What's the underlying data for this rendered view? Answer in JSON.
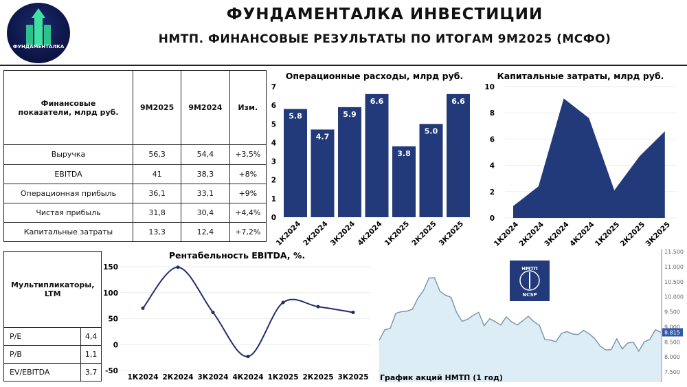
{
  "header": {
    "title": "ФУНДАМЕНТАЛКА ИНВЕСТИЦИИ",
    "subtitle": "НМТП. ФИНАНСОВЫЕ РЕЗУЛЬТАТЫ ПО ИТОГАМ 9М2025 (МСФО)",
    "logo_text": "ФУНДАМЕНТАЛКА"
  },
  "fin_table": {
    "headers": [
      "Финансовые показатели, млрд руб.",
      "9M2025",
      "9M2024",
      "Изм."
    ],
    "rows": [
      [
        "Выручка",
        "56,3",
        "54,4",
        "+3,5%"
      ],
      [
        "EBITDA",
        "41",
        "38,3",
        "+8%"
      ],
      [
        "Операционная прибыль",
        "36,1",
        "33,1",
        "+9%"
      ],
      [
        "Чистая прибыль",
        "31,8",
        "30,4",
        "+4,4%"
      ],
      [
        "Капитальные затраты",
        "13,3",
        "12,4",
        "+7,2%"
      ]
    ]
  },
  "mult_table": {
    "header": "Мультипликаторы, LTM",
    "rows": [
      [
        "P/E",
        "4,4"
      ],
      [
        "P/B",
        "1,1"
      ],
      [
        "EV/EBITDA",
        "3,7"
      ]
    ]
  },
  "chart_data": [
    {
      "type": "bar",
      "title": "Операционные расходы, млрд руб.",
      "categories": [
        "1К2024",
        "2К2024",
        "3К2024",
        "4К2024",
        "1К2025",
        "2К2025",
        "3К2025"
      ],
      "values": [
        5.8,
        4.7,
        5.9,
        6.6,
        3.8,
        5.0,
        6.6
      ],
      "data_labels": [
        "5.8",
        "4.7",
        "5.9",
        "6.6",
        "3.8",
        "5.0",
        "6.6"
      ],
      "ylim": [
        0,
        7
      ],
      "yticks": [
        0,
        1,
        2,
        3,
        4,
        5,
        6,
        7
      ],
      "color": "#233a7a"
    },
    {
      "type": "area",
      "title": "Капитальные затраты, млрд руб.",
      "categories": [
        "1К2024",
        "2К2024",
        "3К2024",
        "4К2024",
        "1К2025",
        "2К2025",
        "3К2025"
      ],
      "values": [
        0.9,
        2.4,
        9.1,
        7.6,
        2.1,
        4.7,
        6.6
      ],
      "ylim": [
        0,
        10
      ],
      "yticks": [
        0,
        2,
        4,
        6,
        8,
        10
      ],
      "color": "#233a7a"
    },
    {
      "type": "line",
      "title": "Рентабельность EBITDA, %.",
      "categories": [
        "1К2024",
        "2К2024",
        "3К2024",
        "4К2024",
        "1К2025",
        "2К2025",
        "3К2025"
      ],
      "values": [
        70,
        149,
        62,
        -23,
        81,
        73,
        62
      ],
      "ylim": [
        -50,
        150
      ],
      "yticks": [
        -50,
        0,
        50,
        100,
        150
      ],
      "color": "#1f2d6b"
    },
    {
      "type": "area",
      "title": "График акций НМТП (1 год)",
      "values": [
        8550,
        8900,
        8950,
        9450,
        9500,
        9520,
        9580,
        9950,
        10200,
        10620,
        10630,
        10180,
        10050,
        9980,
        9480,
        9180,
        9250,
        9380,
        9480,
        9030,
        9270,
        9170,
        9060,
        9330,
        9160,
        9060,
        9200,
        9350,
        9170,
        9050,
        8570,
        8560,
        8500,
        8780,
        8840,
        8760,
        8740,
        8880,
        8770,
        8610,
        8360,
        8230,
        8240,
        8600,
        8260,
        8460,
        8490,
        8190,
        8500,
        8580,
        8900,
        8815
      ],
      "ylim": [
        7200,
        11600
      ],
      "yticks": [
        "7.500",
        "8.000",
        "8.500",
        "9.000",
        "9.500",
        "10.000",
        "10.500",
        "11.000",
        "11.500"
      ],
      "last_price": "8.815",
      "logo_text": [
        "НМТП",
        "NCSP"
      ],
      "color": "#dcedf6"
    }
  ]
}
